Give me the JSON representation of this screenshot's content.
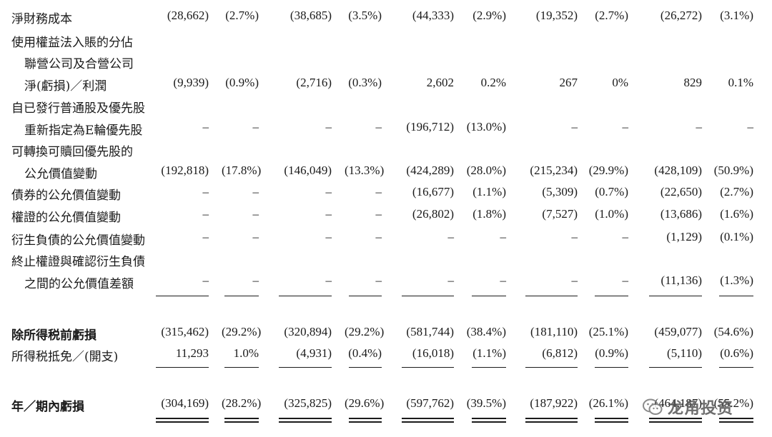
{
  "rows": [
    {
      "label": "淨財務成本",
      "indent": false,
      "bold": false,
      "values": [
        "(28,662)",
        "(2.7%)",
        "(38,685)",
        "(3.5%)",
        "(44,333)",
        "(2.9%)",
        "(19,352)",
        "(2.7%)",
        "(26,272)",
        "(3.1%)"
      ]
    },
    {
      "label": "使用權益法入賬的分佔",
      "indent": false,
      "bold": false,
      "values": null
    },
    {
      "label": "聯營公司及合營公司",
      "indent": true,
      "bold": false,
      "values": null
    },
    {
      "label": "淨(虧損)／利潤",
      "indent": true,
      "bold": false,
      "values": [
        "(9,939)",
        "(0.9%)",
        "(2,716)",
        "(0.3%)",
        "2,602",
        "0.2%",
        "267",
        "0%",
        "829",
        "0.1%"
      ]
    },
    {
      "label": "自已發行普通股及優先股",
      "indent": false,
      "bold": false,
      "values": null
    },
    {
      "label": "重新指定為E輪優先股",
      "indent": true,
      "bold": false,
      "values": [
        "–",
        "–",
        "–",
        "–",
        "(196,712)",
        "(13.0%)",
        "–",
        "–",
        "–",
        "–"
      ]
    },
    {
      "label": "可轉換可贖回優先股的",
      "indent": false,
      "bold": false,
      "values": null
    },
    {
      "label": "公允價值變動",
      "indent": true,
      "bold": false,
      "values": [
        "(192,818)",
        "(17.8%)",
        "(146,049)",
        "(13.3%)",
        "(424,289)",
        "(28.0%)",
        "(215,234)",
        "(29.9%)",
        "(428,109)",
        "(50.9%)"
      ]
    },
    {
      "label": "債券的公允價值變動",
      "indent": false,
      "bold": false,
      "values": [
        "–",
        "–",
        "–",
        "–",
        "(16,677)",
        "(1.1%)",
        "(5,309)",
        "(0.7%)",
        "(22,650)",
        "(2.7%)"
      ]
    },
    {
      "label": "權證的公允價值變動",
      "indent": false,
      "bold": false,
      "values": [
        "–",
        "–",
        "–",
        "–",
        "(26,802)",
        "(1.8%)",
        "(7,527)",
        "(1.0%)",
        "(13,686)",
        "(1.6%)"
      ]
    },
    {
      "label": "衍生負債的公允價值變動",
      "indent": false,
      "bold": false,
      "values": [
        "–",
        "–",
        "–",
        "–",
        "–",
        "–",
        "–",
        "–",
        "(1,129)",
        "(0.1%)"
      ]
    },
    {
      "label": "終止權證與確認衍生負債",
      "indent": false,
      "bold": false,
      "values": null
    },
    {
      "label": "之間的公允價值差額",
      "indent": true,
      "bold": false,
      "values": [
        "–",
        "–",
        "–",
        "–",
        "–",
        "–",
        "–",
        "–",
        "(11,136)",
        "(1.3%)"
      ]
    },
    {
      "label": "除所得税前虧損",
      "indent": false,
      "bold": true,
      "values": [
        "(315,462)",
        "(29.2%)",
        "(320,894)",
        "(29.2%)",
        "(581,744)",
        "(38.4%)",
        "(181,110)",
        "(25.1%)",
        "(459,077)",
        "(54.6%)"
      ]
    },
    {
      "label": "所得税抵免／(開支)",
      "indent": false,
      "bold": false,
      "values": [
        "11,293",
        "1.0%",
        "(4,931)",
        "(0.4%)",
        "(16,018)",
        "(1.1%)",
        "(6,812)",
        "(0.9%)",
        "(5,110)",
        "(0.6%)"
      ]
    },
    {
      "label": "年／期內虧損",
      "indent": false,
      "bold": true,
      "values": [
        "(304,169)",
        "(28.2%)",
        "(325,825)",
        "(29.6%)",
        "(597,762)",
        "(39.5%)",
        "(187,922)",
        "(26.1%)",
        "(464,187)",
        "(55.2%)"
      ]
    }
  ],
  "watermark": {
    "text": "龙角投资",
    "icon": "wechat-icon"
  }
}
